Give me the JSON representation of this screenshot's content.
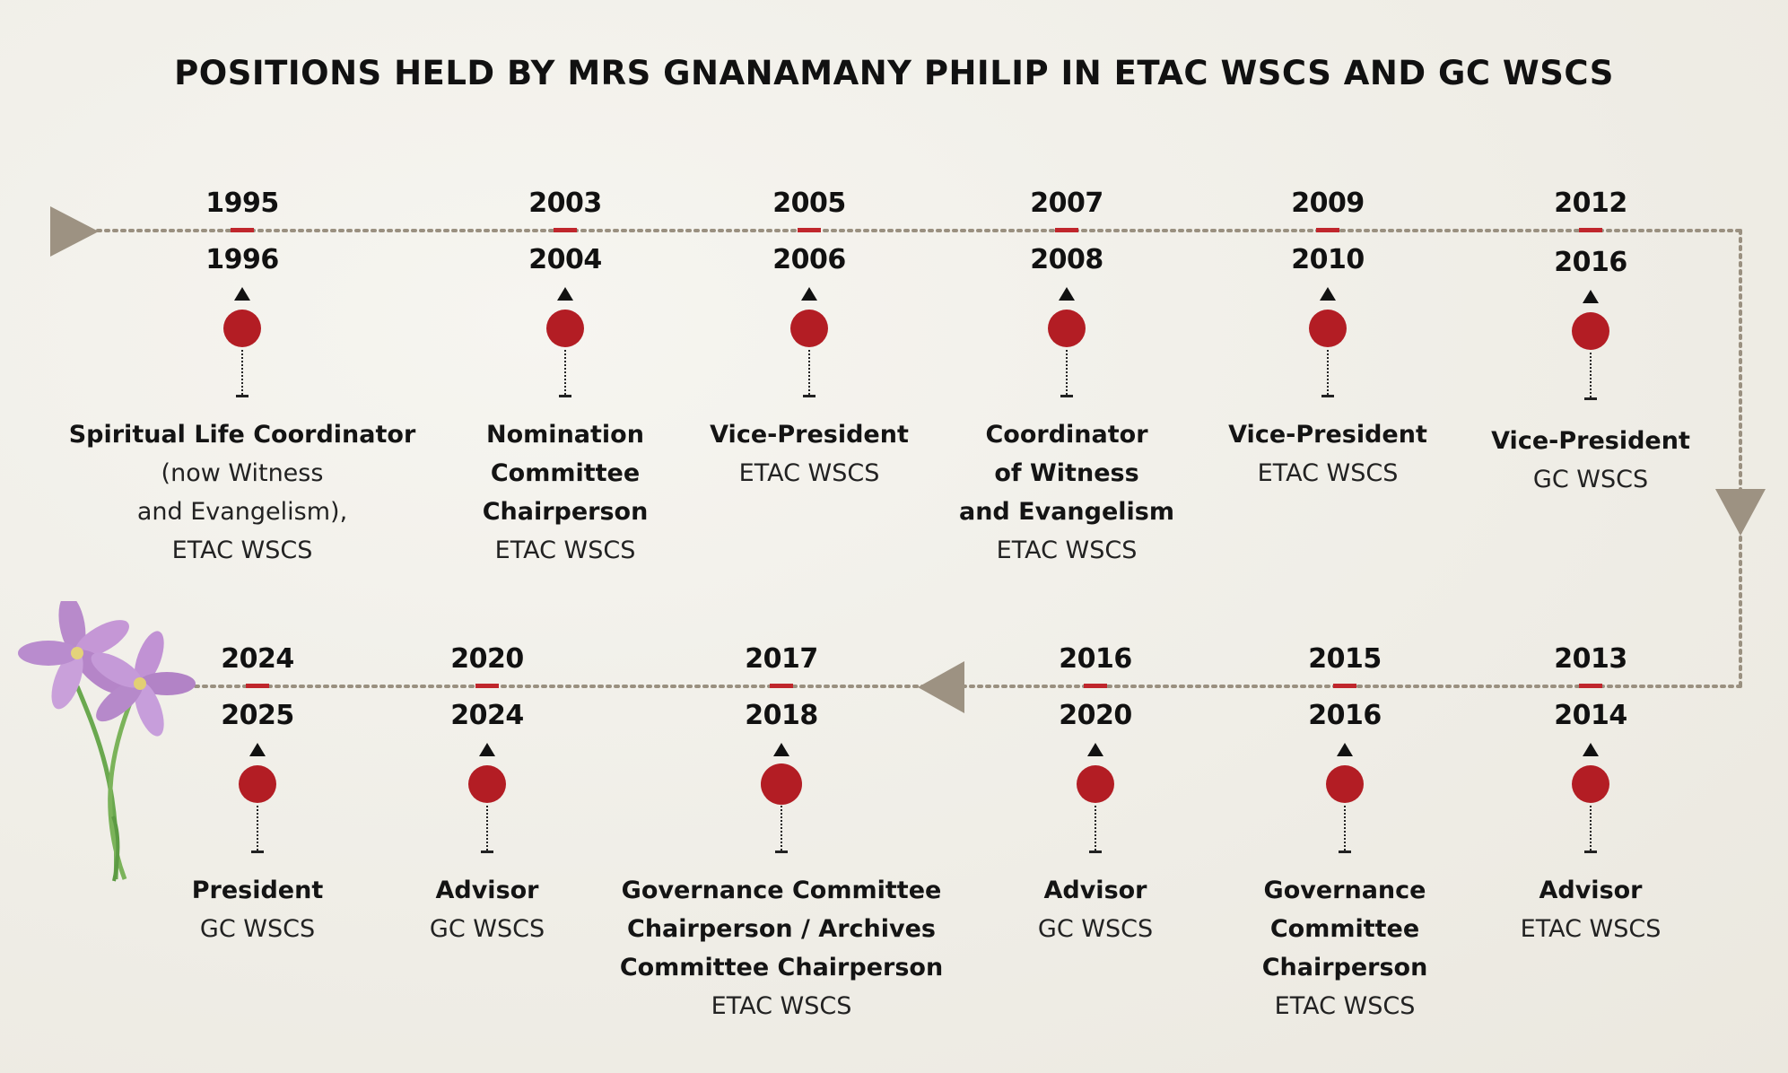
{
  "title": "POSITIONS HELD BY MRS GNANAMANY PHILIP IN ETAC WSCS AND GC WSCS",
  "colors": {
    "accent_red": "#b31d24",
    "dash_red": "#c0262c",
    "path": "#9a9080",
    "arrow": "#9d9282"
  },
  "row1": [
    {
      "start": "1995",
      "end": "1996",
      "role": "Spiritual Life Coordinator",
      "org": "(now Witness\nand Evangelism),\nETAC WSCS"
    },
    {
      "start": "2003",
      "end": "2004",
      "role": "Nomination\nCommittee\nChairperson",
      "org": "ETAC WSCS"
    },
    {
      "start": "2005",
      "end": "2006",
      "role": "Vice-President",
      "org": "ETAC WSCS"
    },
    {
      "start": "2007",
      "end": "2008",
      "role": "Coordinator\nof Witness\nand Evangelism",
      "org": "ETAC WSCS"
    },
    {
      "start": "2009",
      "end": "2010",
      "role": "Vice-President",
      "org": "ETAC WSCS"
    },
    {
      "start": "2012",
      "end": "2016",
      "role": "Vice-President",
      "org": "GC WSCS"
    }
  ],
  "row2": [
    {
      "start": "2024",
      "end": "2025",
      "role": "President",
      "org": "GC WSCS"
    },
    {
      "start": "2020",
      "end": "2024",
      "role": "Advisor",
      "org": "GC WSCS"
    },
    {
      "start": "2017",
      "end": "2018",
      "role": "Governance Committee\nChairperson / Archives\nCommittee Chairperson",
      "org": "ETAC WSCS"
    },
    {
      "start": "2016",
      "end": "2020",
      "role": "Advisor",
      "org": "GC WSCS"
    },
    {
      "start": "2015",
      "end": "2016",
      "role": "Governance\nCommittee\nChairperson",
      "org": "ETAC WSCS"
    },
    {
      "start": "2013",
      "end": "2014",
      "role": "Advisor",
      "org": "ETAC WSCS"
    }
  ]
}
